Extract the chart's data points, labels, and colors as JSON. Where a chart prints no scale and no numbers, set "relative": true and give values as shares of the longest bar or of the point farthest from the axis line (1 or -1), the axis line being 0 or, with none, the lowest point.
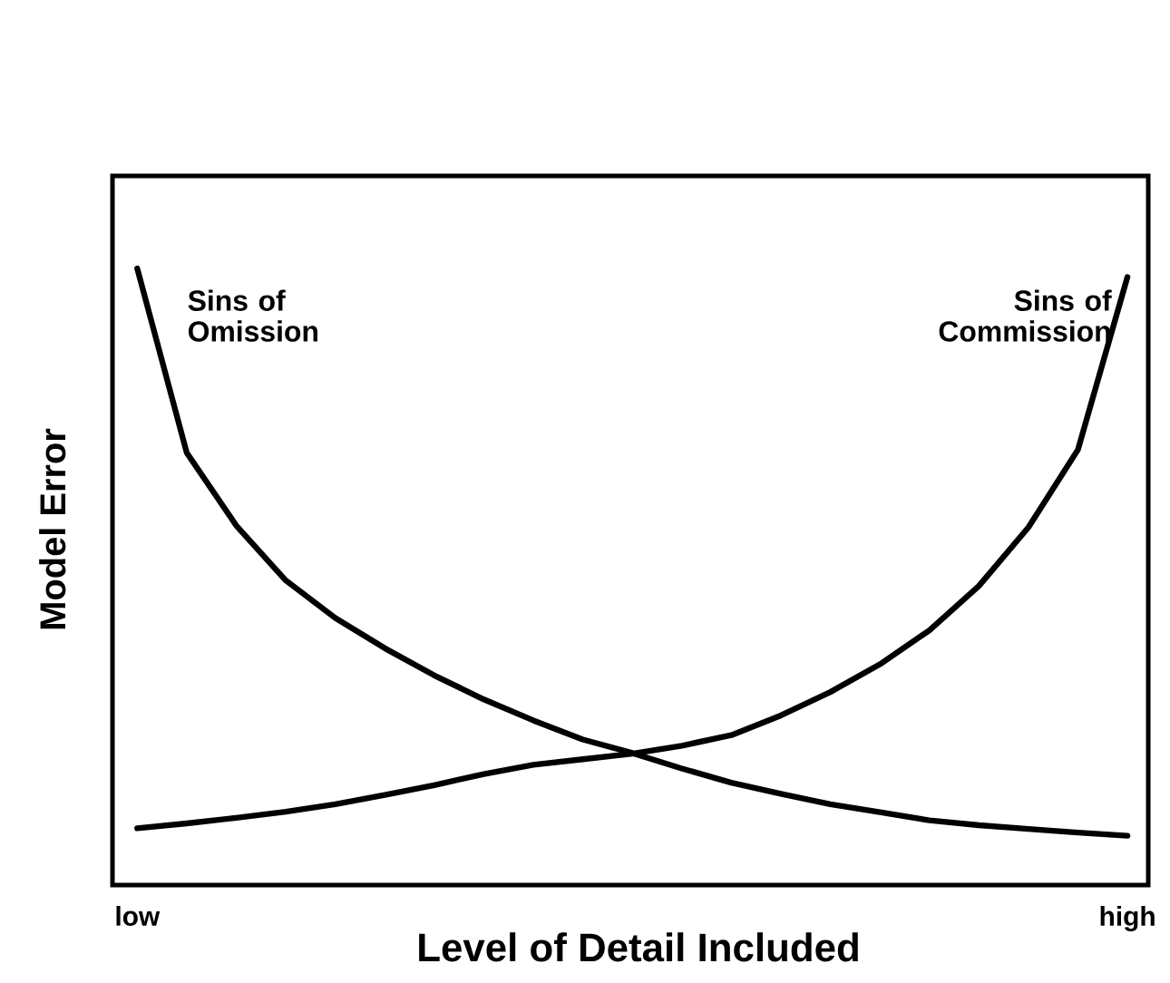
{
  "chart_data": {
    "type": "line",
    "relative": true,
    "xlabel": "Level of Detail Included",
    "ylabel": "Model Error",
    "categories": [
      "low",
      null,
      null,
      null,
      null,
      null,
      null,
      null,
      null,
      null,
      null,
      null,
      null,
      null,
      null,
      null,
      null,
      null,
      null,
      null,
      "high"
    ],
    "marker": "none",
    "line_style": "solid",
    "series": [
      {
        "name": "Sins of Omission",
        "color": "#000000",
        "values": [
          1.0,
          0.701,
          0.583,
          0.494,
          0.433,
          0.384,
          0.34,
          0.301,
          0.267,
          0.236,
          0.214,
          0.189,
          0.166,
          0.148,
          0.131,
          0.118,
          0.105,
          0.097,
          0.091,
          0.085,
          0.08
        ]
      },
      {
        "name": "Sins of Commission",
        "color": "#000000",
        "values": [
          0.092,
          0.1,
          0.109,
          0.119,
          0.131,
          0.146,
          0.162,
          0.18,
          0.195,
          0.204,
          0.213,
          0.226,
          0.243,
          0.275,
          0.313,
          0.358,
          0.413,
          0.485,
          0.58,
          0.706,
          0.986
        ]
      }
    ]
  }
}
